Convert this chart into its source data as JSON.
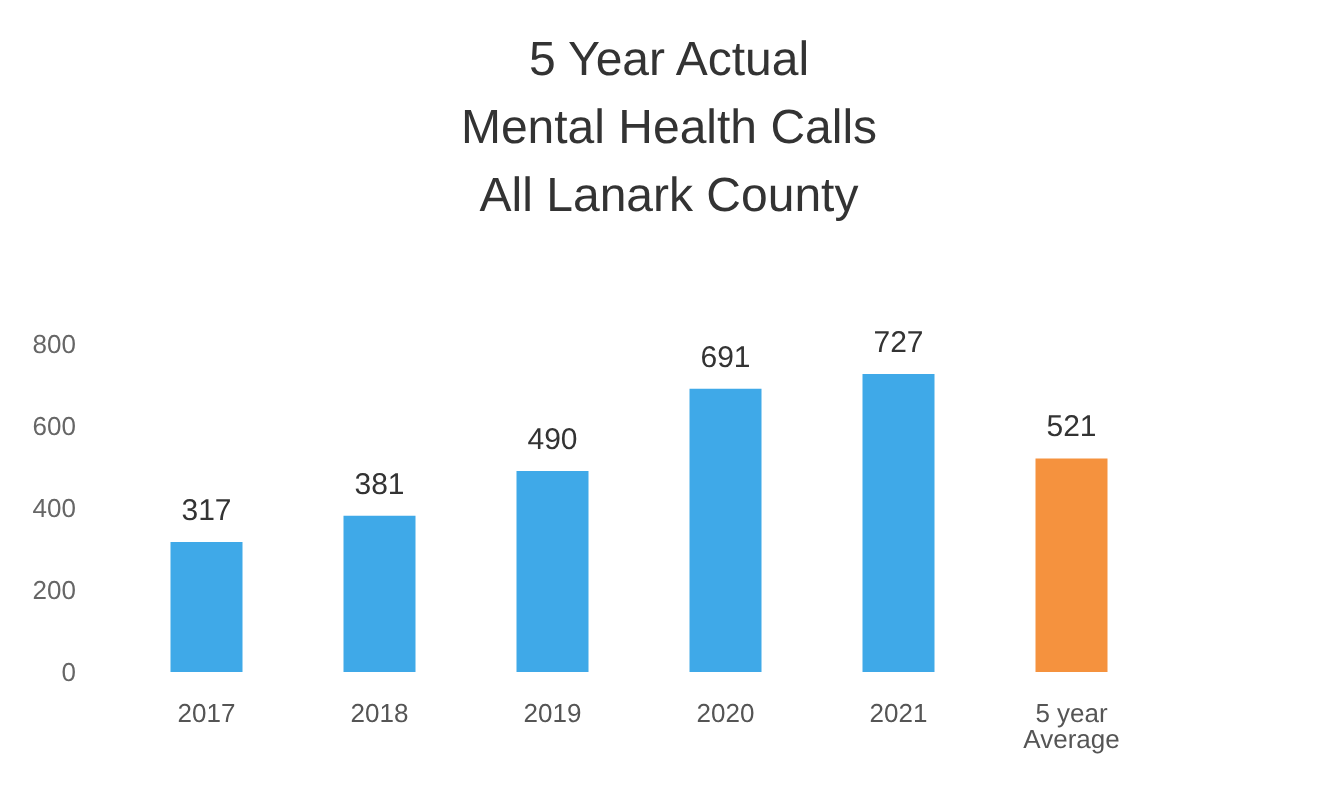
{
  "chart_data": {
    "type": "bar",
    "title": "5 Year Actual\nMental Health Calls\nAll Lanark County",
    "categories": [
      "2017",
      "2018",
      "2019",
      "2020",
      "2021",
      "5 year\nAverage"
    ],
    "values": [
      317,
      381,
      490,
      691,
      727,
      521
    ],
    "colors": [
      "#3fa9e8",
      "#3fa9e8",
      "#3fa9e8",
      "#3fa9e8",
      "#3fa9e8",
      "#f5923e"
    ],
    "ylim": [
      0,
      800
    ],
    "yticks": [
      0,
      200,
      400,
      600,
      800
    ],
    "grid": false,
    "data_labels": true
  }
}
